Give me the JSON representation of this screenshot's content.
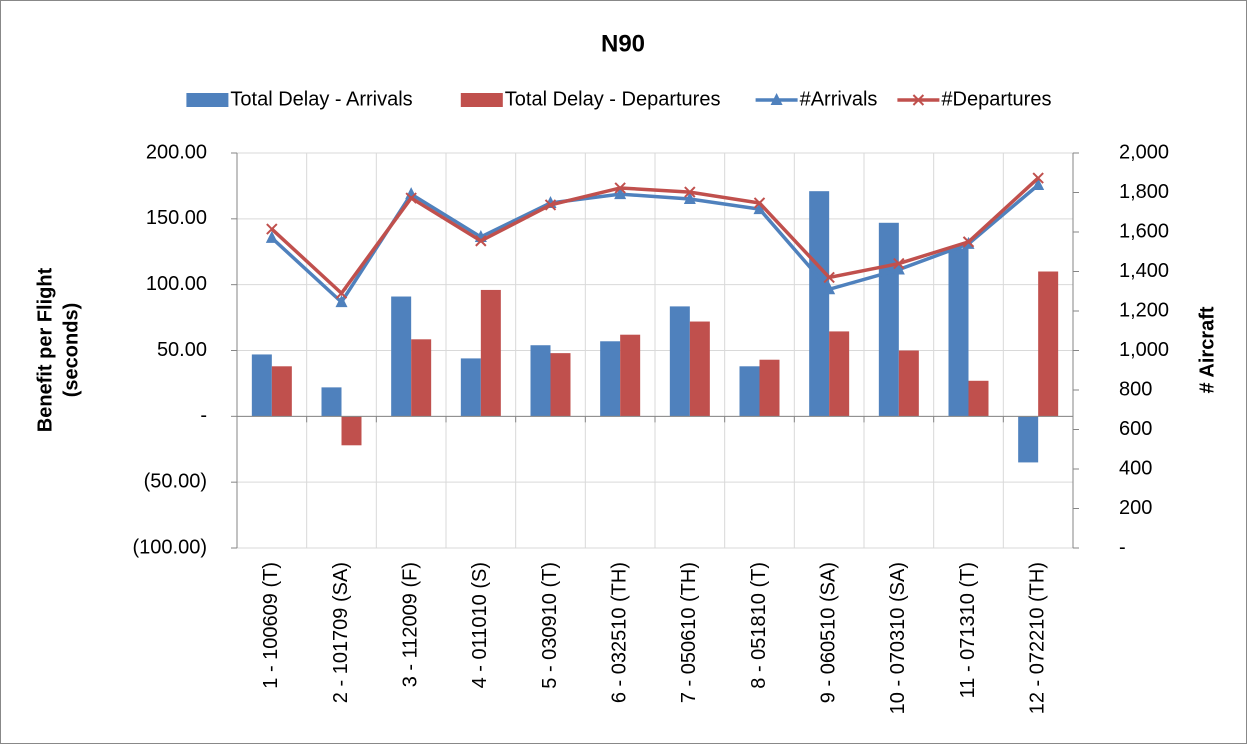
{
  "chart_data": {
    "type": "bar-line",
    "title": "N90",
    "ylabel": [
      "Benefit per Flight",
      "(seconds)"
    ],
    "y2label": "# Aircraft",
    "legend": "top",
    "grid": true,
    "categories": [
      "1 - 100609 (T)",
      "2 - 101709 (SA)",
      "3 - 112009 (F)",
      "4 - 011010 (S)",
      "5 - 030910 (T)",
      "6 - 032510 (TH)",
      "7 - 050610 (TH)",
      "8 - 051810 (T)",
      "9 - 060510 (SA)",
      "10 - 070310 (SA)",
      "11 - 071310 (T)",
      "12 - 072210 (TH)"
    ],
    "series": [
      {
        "name": "Total Delay - Arrivals",
        "type": "bar",
        "color": "#4f81bd",
        "values": [
          47,
          22,
          91,
          44,
          54,
          57,
          83.5,
          38,
          171,
          147,
          127.5,
          -35
        ]
      },
      {
        "name": "Total Delay - Departures",
        "type": "bar",
        "color": "#c0504d",
        "values": [
          38,
          -22,
          58.5,
          96,
          48,
          62,
          72,
          43,
          64.5,
          50,
          27,
          110
        ]
      },
      {
        "name": "#Arrivals",
        "type": "line",
        "marker": "triangle",
        "axis": "y2",
        "color": "#4f81bd",
        "values": [
          1570,
          1245,
          1792,
          1575,
          1747,
          1792,
          1767,
          1716,
          1310,
          1410,
          1540,
          1838
        ]
      },
      {
        "name": "#Departures",
        "type": "line",
        "marker": "x",
        "axis": "y2",
        "color": "#c0504d",
        "values": [
          1615,
          1290,
          1772,
          1555,
          1737,
          1823,
          1802,
          1747,
          1370,
          1440,
          1550,
          1873
        ]
      }
    ],
    "ylim": [
      -100,
      200
    ],
    "yticks": [
      {
        "value": -100,
        "label": "(100.00)"
      },
      {
        "value": -50,
        "label": "(50.00)"
      },
      {
        "value": 0,
        "label": "-"
      },
      {
        "value": 50,
        "label": "50.00"
      },
      {
        "value": 100,
        "label": "100.00"
      },
      {
        "value": 150,
        "label": "150.00"
      },
      {
        "value": 200,
        "label": "200.00"
      }
    ],
    "y2lim": [
      0,
      2000
    ],
    "y2ticks": [
      {
        "value": 0,
        "label": "-"
      },
      200,
      400,
      600,
      800,
      {
        "value": 1000,
        "label": "1,000"
      },
      {
        "value": 1200,
        "label": "1,200"
      },
      {
        "value": 1400,
        "label": "1,400"
      },
      {
        "value": 1600,
        "label": "1,600"
      },
      {
        "value": 1800,
        "label": "1,800"
      },
      {
        "value": 2000,
        "label": "2,000"
      }
    ]
  }
}
